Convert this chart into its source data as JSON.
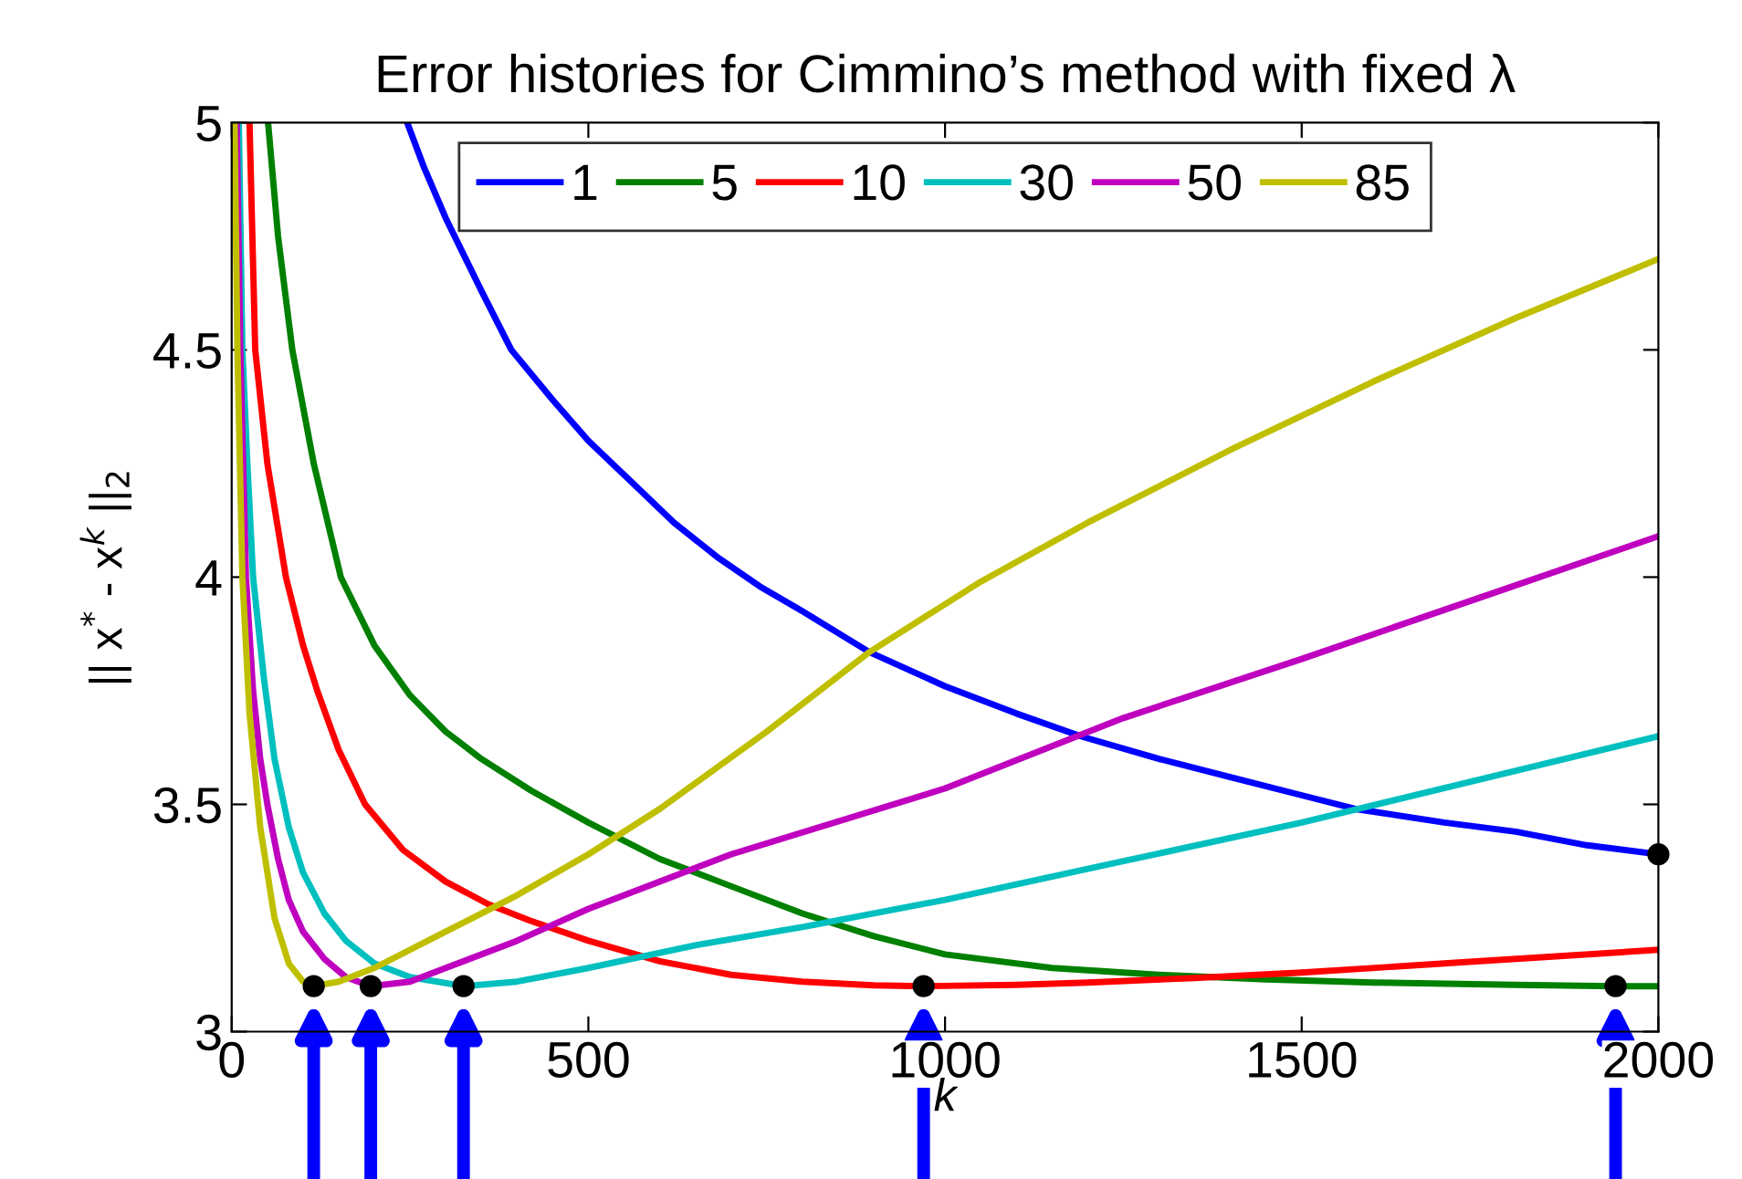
{
  "chart_data": {
    "type": "line",
    "title": "Error histories for Cimmino’s method with fixed λ",
    "xlabel": "k",
    "ylabel": "|| x$^{*}$ - x$^{k}$ ||$_{2}$",
    "xlim": [
      0,
      2000
    ],
    "ylim": [
      3,
      5
    ],
    "xticks": [
      0,
      500,
      1000,
      1500,
      2000
    ],
    "yticks": [
      3,
      3.5,
      4,
      4.5,
      5
    ],
    "grid": false,
    "legend": "top",
    "marker": "none",
    "line_style": "solid",
    "series": [
      {
        "name": "1",
        "color": "#0000ff",
        "x": [
          246,
          270,
          300,
          350,
          392,
          450,
          500,
          560,
          620,
          680,
          740,
          800,
          894,
          1000,
          1100,
          1190,
          1300,
          1400,
          1500,
          1575,
          1700,
          1800,
          1900,
          2000
        ],
        "values": [
          5.0,
          4.9,
          4.79,
          4.63,
          4.5,
          4.39,
          4.3,
          4.21,
          4.12,
          4.045,
          3.98,
          3.925,
          3.835,
          3.76,
          3.7,
          3.65,
          3.6,
          3.56,
          3.52,
          3.49,
          3.46,
          3.44,
          3.41,
          3.39
        ]
      },
      {
        "name": "5",
        "color": "#008000",
        "x": [
          51,
          65,
          85,
          115,
          153,
          200,
          250,
          300,
          350,
          420,
          500,
          600,
          700,
          800,
          900,
          1000,
          1150,
          1300,
          1450,
          1600,
          1800,
          1940,
          2000
        ],
        "values": [
          5.0,
          4.75,
          4.5,
          4.25,
          4.0,
          3.85,
          3.74,
          3.66,
          3.6,
          3.53,
          3.46,
          3.38,
          3.32,
          3.26,
          3.21,
          3.17,
          3.14,
          3.125,
          3.115,
          3.108,
          3.103,
          3.1,
          3.1
        ]
      },
      {
        "name": "10",
        "color": "#ff0000",
        "x": [
          25,
          33,
          50,
          76,
          100,
          120,
          150,
          187,
          240,
          300,
          360,
          417,
          500,
          600,
          700,
          800,
          900,
          970,
          1100,
          1200,
          1350,
          1500,
          1750,
          2000
        ],
        "values": [
          5.0,
          4.5,
          4.25,
          4.0,
          3.85,
          3.75,
          3.62,
          3.5,
          3.4,
          3.33,
          3.28,
          3.245,
          3.2,
          3.155,
          3.125,
          3.11,
          3.102,
          3.1,
          3.103,
          3.108,
          3.118,
          3.13,
          3.155,
          3.18
        ]
      },
      {
        "name": "30",
        "color": "#00bfbf",
        "x": [
          10,
          15,
          22,
          30,
          45,
          60,
          80,
          100,
          130,
          160,
          200,
          250,
          325,
          400,
          500,
          650,
          800,
          1000,
          1250,
          1500,
          1750,
          2000
        ],
        "values": [
          5.0,
          4.5,
          4.25,
          4.0,
          3.78,
          3.6,
          3.45,
          3.35,
          3.26,
          3.2,
          3.15,
          3.12,
          3.1,
          3.11,
          3.14,
          3.19,
          3.23,
          3.29,
          3.375,
          3.46,
          3.555,
          3.65
        ]
      },
      {
        "name": "50",
        "color": "#bf00bf",
        "x": [
          7,
          12,
          20,
          30,
          40,
          50,
          65,
          80,
          100,
          130,
          160,
          195,
          250,
          300,
          400,
          500,
          700,
          1000,
          1250,
          1500,
          1750,
          2000
        ],
        "values": [
          5.0,
          4.5,
          4.0,
          3.75,
          3.6,
          3.5,
          3.38,
          3.29,
          3.22,
          3.16,
          3.12,
          3.1,
          3.11,
          3.14,
          3.2,
          3.27,
          3.39,
          3.535,
          3.69,
          3.82,
          3.955,
          4.09
        ]
      },
      {
        "name": "85",
        "color": "#bfbf00",
        "x": [
          4,
          8,
          15,
          25,
          40,
          60,
          80,
          100,
          115,
          150,
          200,
          300,
          400,
          500,
          600,
          750,
          894,
          1050,
          1200,
          1400,
          1600,
          1800,
          2000
        ],
        "values": [
          5.0,
          4.5,
          4.0,
          3.7,
          3.45,
          3.25,
          3.15,
          3.11,
          3.1,
          3.11,
          3.14,
          3.22,
          3.3,
          3.39,
          3.49,
          3.66,
          3.835,
          3.99,
          4.12,
          4.28,
          4.43,
          4.57,
          4.7
        ]
      },
      {
        "type": "scatter",
        "color": "#000000",
        "marker": "circle",
        "x": [
          115,
          195,
          325,
          970,
          1940,
          2000
        ],
        "values": [
          3.1,
          3.1,
          3.1,
          3.1,
          3.1,
          3.39
        ]
      }
    ]
  }
}
